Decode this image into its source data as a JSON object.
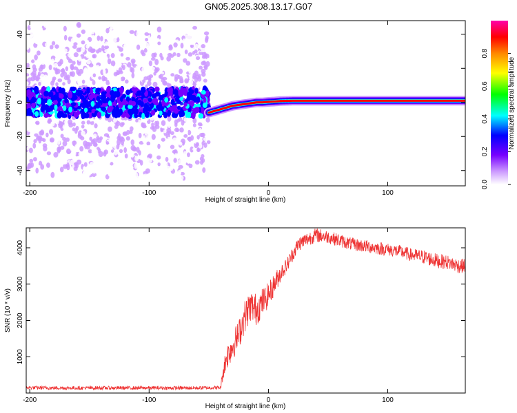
{
  "title": "GN05.2025.308.13.17.G07",
  "chart_data": [
    {
      "type": "heatmap",
      "name": "spectrogram",
      "xlabel": "Height of straight line (km)",
      "ylabel": "Frequency (Hz)",
      "xlim": [
        -203,
        165
      ],
      "ylim": [
        -49,
        48
      ],
      "xticks": [
        -200,
        -100,
        0,
        100
      ],
      "xtick_labels": [
        "-200",
        "-100",
        "0",
        "100"
      ],
      "yticks": [
        -40,
        -20,
        0,
        20,
        40
      ],
      "ytick_labels": [
        "-40",
        "-20",
        "0",
        "20",
        "40"
      ],
      "colorbar": {
        "label": "Normalized spectral amplitude",
        "range": [
          0,
          1
        ],
        "ticks": [
          0,
          0.2,
          0.4,
          0.6,
          0.8
        ],
        "tick_labels": [
          "0.0",
          "0.2",
          "0.4",
          "0.6",
          "0.8"
        ],
        "colors": [
          "#ffffff",
          "#cc99ff",
          "#7700ff",
          "#0000ff",
          "#00ffff",
          "#00ff00",
          "#ffff00",
          "#ff8800",
          "#ff0000",
          "#ff00aa"
        ]
      },
      "noise_region": {
        "x_range": [
          -203,
          -50
        ],
        "band_center_hz": 0,
        "band_halfwidth_hz": 8,
        "description_levels": [
          0.05,
          0.3
        ]
      },
      "carrier_track": {
        "x": [
          -50,
          -45,
          -40,
          -35,
          -30,
          -25,
          -20,
          -15,
          -10,
          -5,
          0,
          5,
          10,
          20,
          40,
          60,
          80,
          100,
          120,
          140,
          165
        ],
        "frequency_hz": [
          -6,
          -5,
          -4,
          -3,
          -2,
          -1.5,
          -1,
          -0.5,
          0,
          0,
          0.3,
          0.5,
          0.8,
          1,
          1,
          1,
          1,
          1,
          1,
          1,
          1
        ]
      },
      "grid": false
    },
    {
      "type": "line",
      "name": "snr",
      "xlabel": "Height of straight line (km)",
      "ylabel": "SNR (10 * v/v)",
      "xlim": [
        -203,
        165
      ],
      "ylim": [
        0,
        4550
      ],
      "xticks": [
        -200,
        -100,
        0,
        100
      ],
      "xtick_labels": [
        "-200",
        "-100",
        "0",
        "100"
      ],
      "yticks": [
        1000,
        2000,
        3000,
        4000
      ],
      "ytick_labels": [
        "1000",
        "2000",
        "3000",
        "4000"
      ],
      "color": "#ee3333",
      "series": [
        {
          "x": [
            -203,
            -180,
            -150,
            -120,
            -90,
            -60,
            -40,
            -38,
            -35,
            -30,
            -25,
            -20,
            -15,
            -10,
            -5,
            0,
            5,
            10,
            15,
            20,
            25,
            30,
            40,
            50,
            60,
            70,
            80,
            90,
            100,
            110,
            120,
            130,
            140,
            150,
            160,
            165
          ],
          "y": [
            150,
            140,
            140,
            140,
            140,
            140,
            150,
            600,
            1000,
            1300,
            1600,
            2100,
            2400,
            2300,
            2500,
            2700,
            3000,
            3300,
            3500,
            3800,
            4100,
            4200,
            4350,
            4300,
            4200,
            4100,
            4050,
            4000,
            3950,
            3900,
            3800,
            3750,
            3650,
            3600,
            3500,
            3500
          ],
          "noise_amplitude": [
            50,
            50,
            50,
            50,
            50,
            50,
            50,
            250,
            350,
            400,
            400,
            450,
            450,
            450,
            400,
            350,
            300,
            250,
            200,
            200,
            200,
            200,
            200,
            180,
            180,
            180,
            180,
            180,
            180,
            180,
            180,
            200,
            200,
            200,
            200,
            200
          ]
        }
      ],
      "grid": false
    }
  ]
}
